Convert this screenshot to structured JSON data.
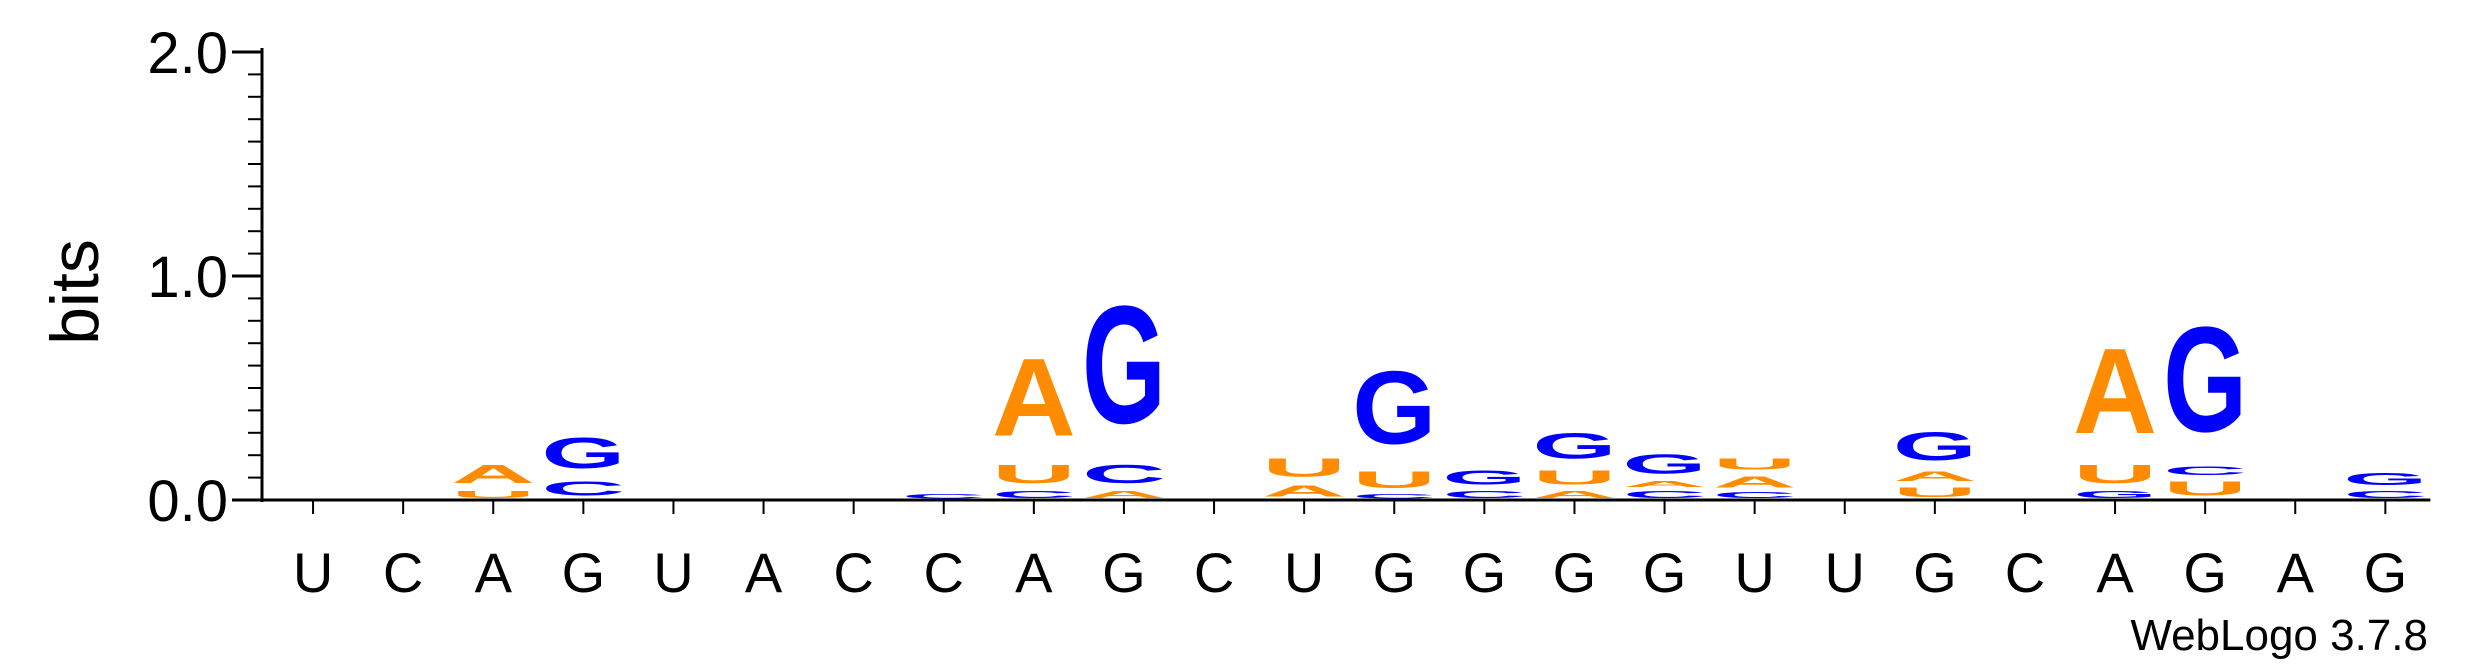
{
  "chart_data": {
    "type": "sequence-logo",
    "ylabel": "bits",
    "ylim": [
      0,
      2.0
    ],
    "yticks": [
      {
        "value": 0.0,
        "label": "0.0"
      },
      {
        "value": 1.0,
        "label": "1.0"
      },
      {
        "value": 2.0,
        "label": "2.0"
      }
    ],
    "colors": {
      "A": "#ff8c00",
      "U": "#ff8c00",
      "G": "#0000ff",
      "C": "#0000ff"
    },
    "positions": [
      {
        "label": "U",
        "stack": []
      },
      {
        "label": "C",
        "stack": []
      },
      {
        "label": "A",
        "stack": [
          {
            "letter": "U",
            "bits": 0.05
          },
          {
            "letter": "A",
            "bits": 0.13
          }
        ]
      },
      {
        "label": "G",
        "stack": [
          {
            "letter": "C",
            "bits": 0.1
          },
          {
            "letter": "G",
            "bits": 0.22
          }
        ]
      },
      {
        "label": "U",
        "stack": []
      },
      {
        "label": "A",
        "stack": []
      },
      {
        "label": "C",
        "stack": []
      },
      {
        "label": "C",
        "stack": [
          {
            "letter": "C",
            "bits": 0.03
          }
        ]
      },
      {
        "label": "A",
        "stack": [
          {
            "letter": "C",
            "bits": 0.05
          },
          {
            "letter": "U",
            "bits": 0.13
          },
          {
            "letter": "A",
            "bits": 0.55
          }
        ]
      },
      {
        "label": "G",
        "stack": [
          {
            "letter": "A",
            "bits": 0.05
          },
          {
            "letter": "C",
            "bits": 0.13
          },
          {
            "letter": "G",
            "bits": 0.84
          }
        ]
      },
      {
        "label": "C",
        "stack": []
      },
      {
        "label": "U",
        "stack": [
          {
            "letter": "A",
            "bits": 0.08
          },
          {
            "letter": "U",
            "bits": 0.13
          }
        ]
      },
      {
        "label": "G",
        "stack": [
          {
            "letter": "C",
            "bits": 0.03
          },
          {
            "letter": "U",
            "bits": 0.12
          },
          {
            "letter": "G",
            "bits": 0.52
          }
        ]
      },
      {
        "label": "G",
        "stack": [
          {
            "letter": "C",
            "bits": 0.05
          },
          {
            "letter": "G",
            "bits": 0.1
          }
        ]
      },
      {
        "label": "G",
        "stack": [
          {
            "letter": "A",
            "bits": 0.05
          },
          {
            "letter": "U",
            "bits": 0.1
          },
          {
            "letter": "G",
            "bits": 0.18
          }
        ]
      },
      {
        "label": "G",
        "stack": [
          {
            "letter": "C",
            "bits": 0.05
          },
          {
            "letter": "A",
            "bits": 0.04
          },
          {
            "letter": "G",
            "bits": 0.14
          }
        ]
      },
      {
        "label": "U",
        "stack": [
          {
            "letter": "C",
            "bits": 0.04
          },
          {
            "letter": "A",
            "bits": 0.08
          },
          {
            "letter": "U",
            "bits": 0.08
          }
        ]
      },
      {
        "label": "U",
        "stack": []
      },
      {
        "label": "G",
        "stack": [
          {
            "letter": "U",
            "bits": 0.07
          },
          {
            "letter": "A",
            "bits": 0.07
          },
          {
            "letter": "G",
            "bits": 0.2
          }
        ]
      },
      {
        "label": "C",
        "stack": []
      },
      {
        "label": "A",
        "stack": [
          {
            "letter": "G",
            "bits": 0.05
          },
          {
            "letter": "U",
            "bits": 0.13
          },
          {
            "letter": "A",
            "bits": 0.61
          }
        ]
      },
      {
        "label": "G",
        "stack": [
          {
            "letter": "U",
            "bits": 0.1
          },
          {
            "letter": "C",
            "bits": 0.06
          },
          {
            "letter": "G",
            "bits": 0.75
          }
        ]
      },
      {
        "label": "A",
        "stack": []
      },
      {
        "label": "G",
        "stack": [
          {
            "letter": "C",
            "bits": 0.05
          },
          {
            "letter": "G",
            "bits": 0.09
          }
        ]
      }
    ]
  },
  "footer": {
    "credit": "WebLogo 3.7.8"
  }
}
